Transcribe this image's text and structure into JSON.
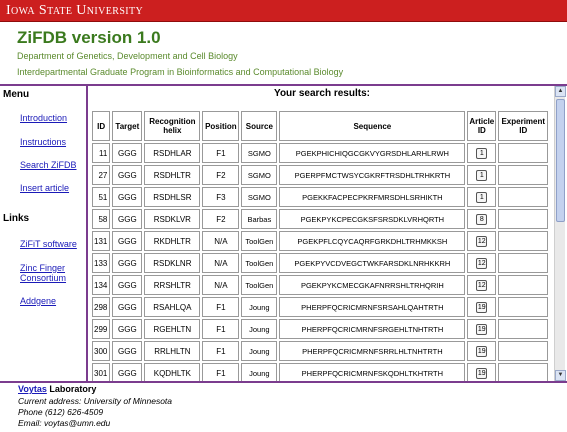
{
  "banner": {
    "university": "Iowa State University"
  },
  "header": {
    "title": "ZiFDB version 1.0",
    "department": "Department of Genetics, Development and Cell Biology",
    "program": "Interdepartmental Graduate Program in Bioinformatics and Computational Biology"
  },
  "sidebar": {
    "menu_heading": "Menu",
    "menu_items": [
      "Introduction",
      "Instructions",
      "Search ZiFDB",
      "Insert article"
    ],
    "links_heading": "Links",
    "link_items": [
      "ZiFiT software",
      "Zinc Finger Consortium",
      "Addgene"
    ]
  },
  "results": {
    "title": "Your search results:",
    "columns": [
      "ID",
      "Target",
      "Recognition helix",
      "Position",
      "Source",
      "Sequence",
      "Article ID",
      "Experiment ID"
    ],
    "rows": [
      {
        "id": "11",
        "target": "GGG",
        "helix": "RSDHLAR",
        "position": "F1",
        "source": "SGMO",
        "sequence": "PGEKPHICHIQGCGKVYGRSDHLARHLRWH",
        "article": "1",
        "experiment": ""
      },
      {
        "id": "27",
        "target": "GGG",
        "helix": "RSDHLTR",
        "position": "F2",
        "source": "SGMO",
        "sequence": "PGERPFMCTWSYCGKRFTRSDHLTRHKRTH",
        "article": "1",
        "experiment": ""
      },
      {
        "id": "51",
        "target": "GGG",
        "helix": "RSDHLSR",
        "position": "F3",
        "source": "SGMO",
        "sequence": "PGEKKFACPECPKRFMRSDHLSRHIKTH",
        "article": "1",
        "experiment": ""
      },
      {
        "id": "58",
        "target": "GGG",
        "helix": "RSDKLVR",
        "position": "F2",
        "source": "Barbas",
        "sequence": "PGEKPYKCPECGKSFSRSDKLVRHQRTH",
        "article": "8",
        "experiment": ""
      },
      {
        "id": "131",
        "target": "GGG",
        "helix": "RKDHLTR",
        "position": "N/A",
        "source": "ToolGen",
        "sequence": "PGEKPFLCQYCAQRFGRKDHLTRHMKKSH",
        "article": "12",
        "experiment": ""
      },
      {
        "id": "133",
        "target": "GGG",
        "helix": "RSDKLNR",
        "position": "N/A",
        "source": "ToolGen",
        "sequence": "PGEKPYVCDVEGCTWKFARSDKLNRHKKRH",
        "article": "12",
        "experiment": ""
      },
      {
        "id": "134",
        "target": "GGG",
        "helix": "RRSHLTR",
        "position": "N/A",
        "source": "ToolGen",
        "sequence": "PGEKPYKCMECGKAFNRRSHLTRHQRIH",
        "article": "12",
        "experiment": ""
      },
      {
        "id": "298",
        "target": "GGG",
        "helix": "RSAHLQA",
        "position": "F1",
        "source": "Joung",
        "sequence": "PHERPFQCRICMRNFSRSAHLQAHTRTH",
        "article": "19",
        "experiment": ""
      },
      {
        "id": "299",
        "target": "GGG",
        "helix": "RGEHLTN",
        "position": "F1",
        "source": "Joung",
        "sequence": "PHERPFQCRICMRNFSRGEHLTNHTRTH",
        "article": "19",
        "experiment": ""
      },
      {
        "id": "300",
        "target": "GGG",
        "helix": "RRLHLTN",
        "position": "F1",
        "source": "Joung",
        "sequence": "PHERPFQCRICMRNFSRRLHLTNHTRTH",
        "article": "19",
        "experiment": ""
      },
      {
        "id": "301",
        "target": "GGG",
        "helix": "KQDHLTK",
        "position": "F1",
        "source": "Joung",
        "sequence": "PHERPFQCRICMRNFSKQDHLTKHTRTH",
        "article": "19",
        "experiment": ""
      }
    ]
  },
  "footer": {
    "lab_name": "Voytas",
    "lab_suffix": " Laboratory",
    "address": "Current address: University of Minnesota",
    "phone": "Phone (612) 626-4509",
    "email": "Email: voytas@umn.edu"
  },
  "colors": {
    "banner": "#cc1f1f",
    "title": "#3b7a1e",
    "subtitle": "#5a8a2c",
    "frame": "#7b3c8e",
    "link": "#1a1ab8"
  }
}
